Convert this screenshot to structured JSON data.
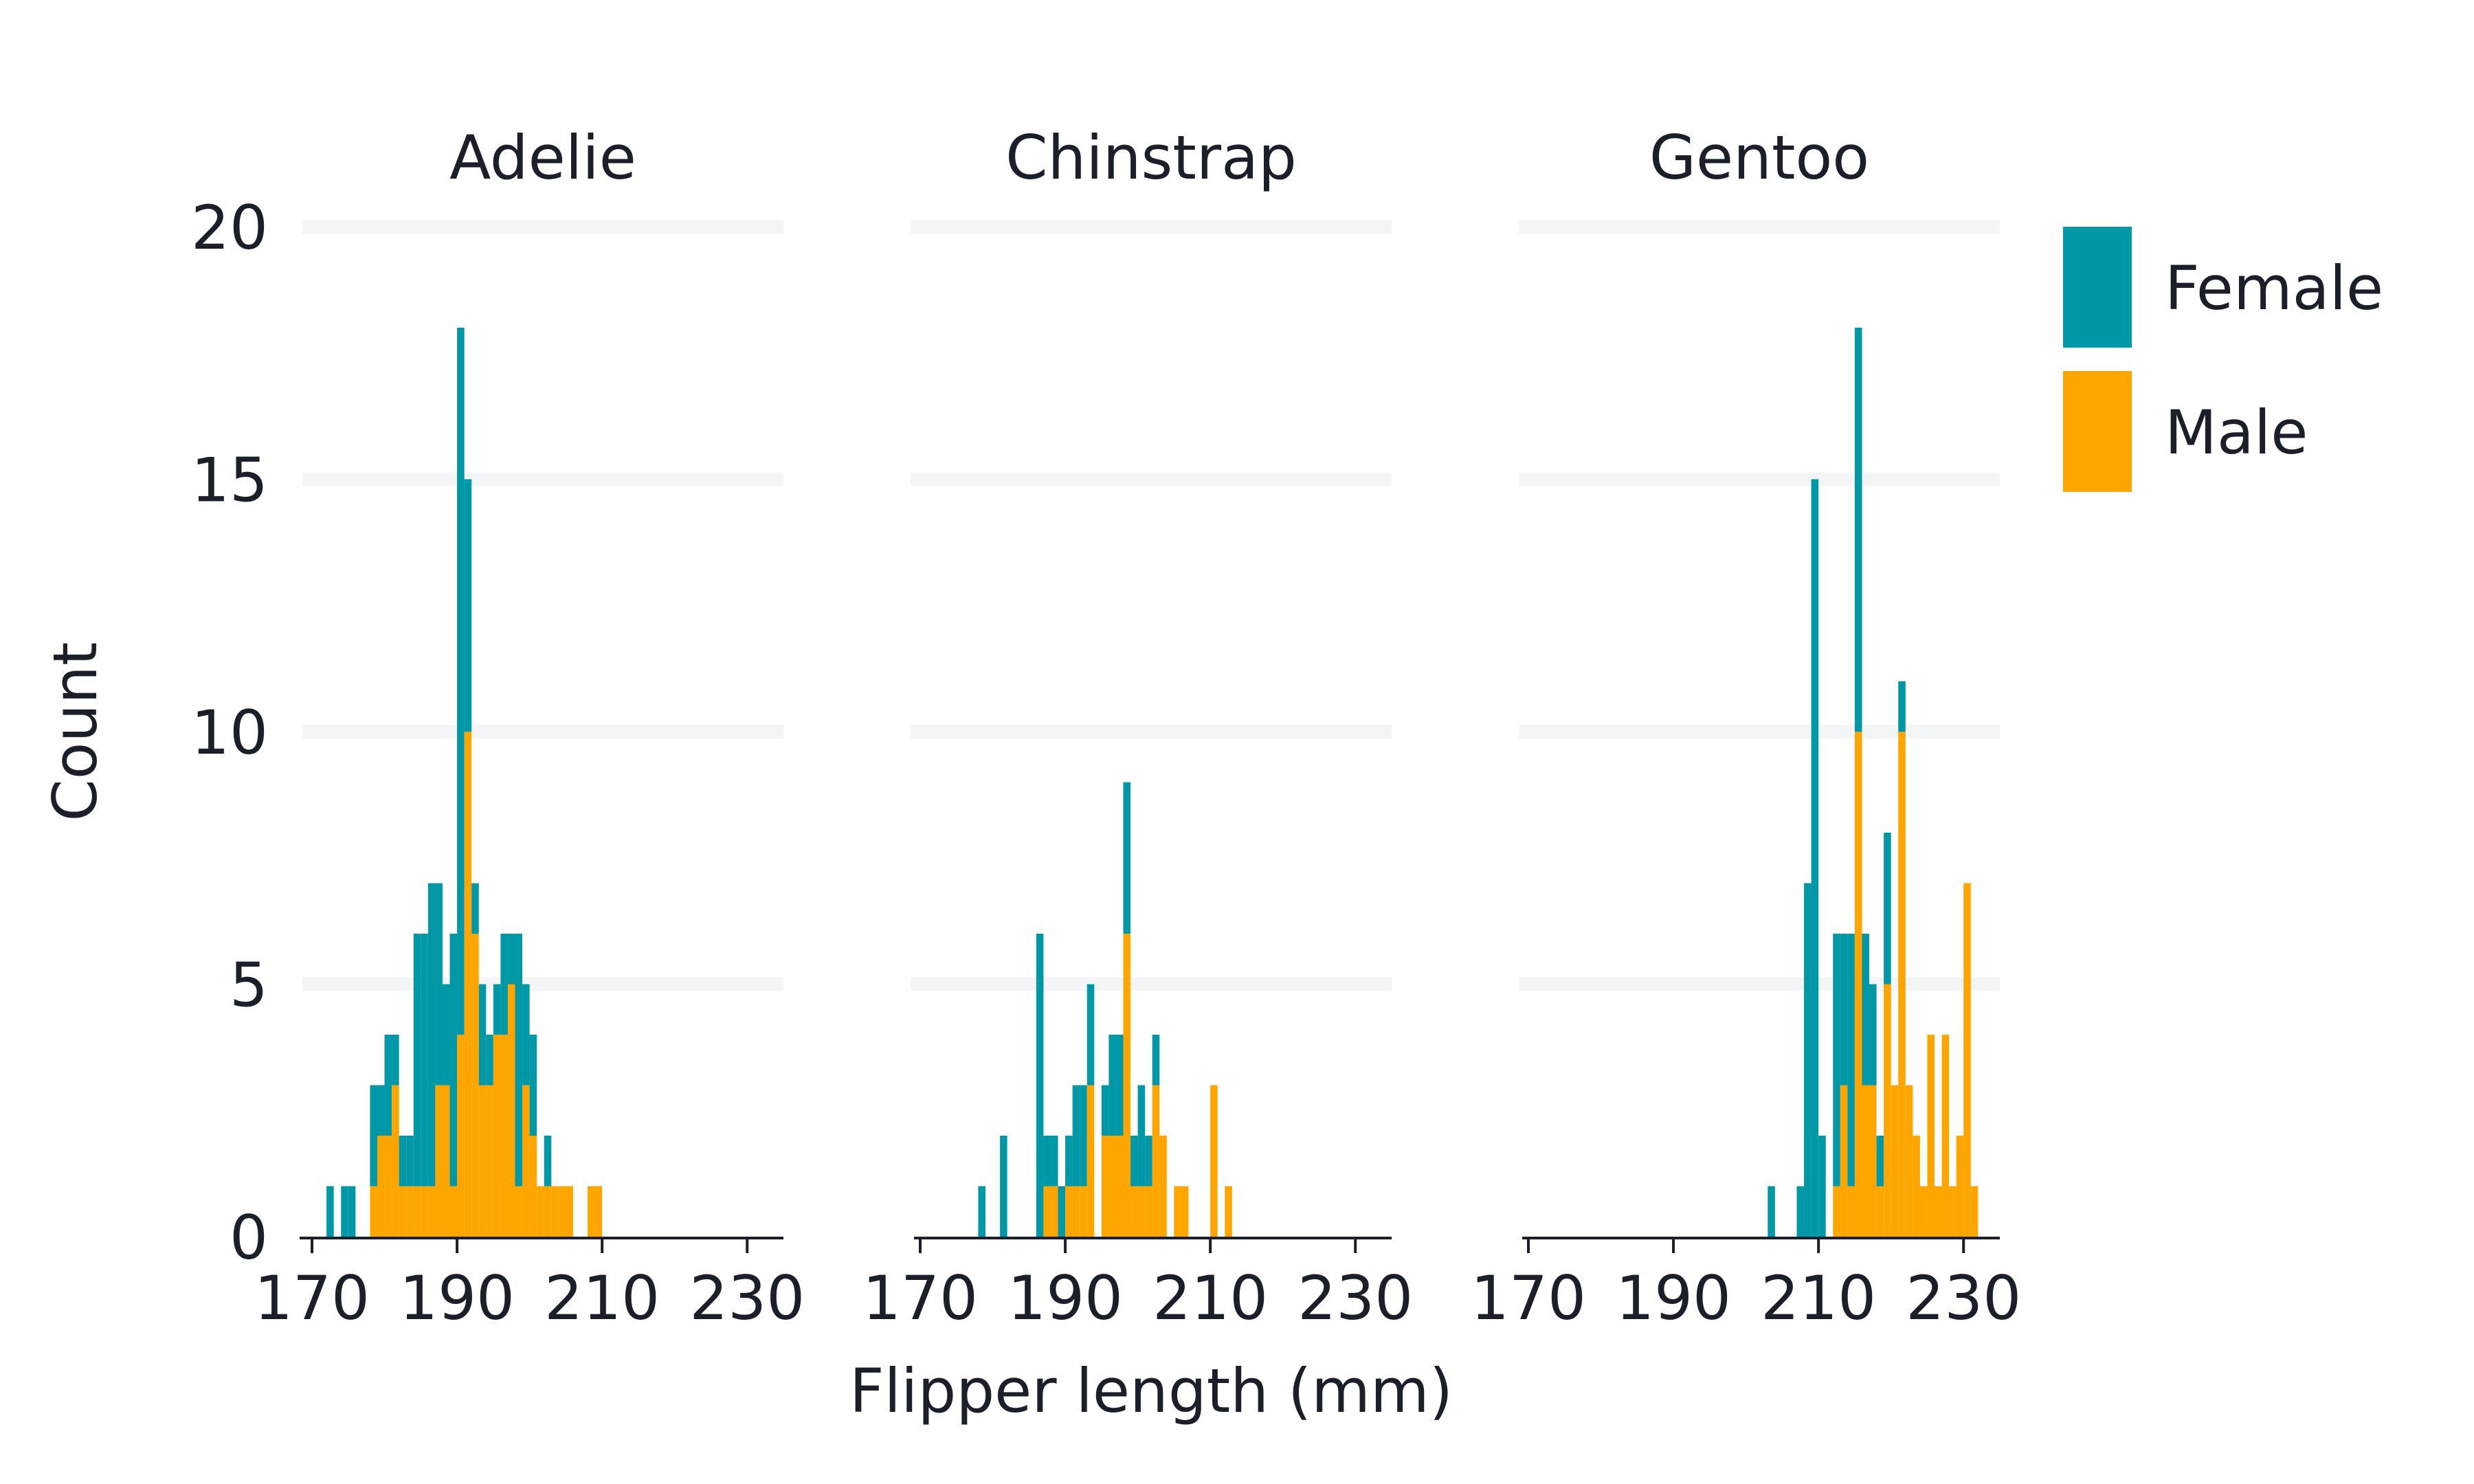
{
  "chart_data": {
    "type": "bar",
    "stacked": true,
    "xlabel": "Flipper length (mm)",
    "ylabel": "Count",
    "ylim": [
      0,
      20
    ],
    "yticks": [
      0,
      5,
      10,
      15,
      20
    ],
    "xlim": [
      170,
      235
    ],
    "xticks": [
      170,
      190,
      210,
      230
    ],
    "bin_width": 1,
    "grid": "horizontal",
    "legend": {
      "position": "right",
      "entries": [
        {
          "name": "Female",
          "color": "#0097a7"
        },
        {
          "name": "Male",
          "color": "#ffa500"
        }
      ]
    },
    "facets": [
      {
        "title": "Adelie",
        "x": [
          172,
          174,
          175,
          178,
          179,
          180,
          181,
          182,
          183,
          184,
          185,
          186,
          187,
          188,
          189,
          190,
          191,
          192,
          193,
          194,
          195,
          196,
          197,
          198,
          199,
          200,
          201,
          202,
          203,
          204,
          205,
          208,
          209
        ],
        "series": [
          {
            "name": "Female",
            "values": [
              1,
              1,
              1,
              2,
              1,
              2,
              1,
              1,
              1,
              5,
              5,
              6,
              4,
              2,
              5,
              14,
              5,
              1,
              2,
              1,
              1,
              2,
              1,
              5,
              2,
              2,
              0,
              1,
              0,
              0,
              0,
              0,
              0
            ]
          },
          {
            "name": "Male",
            "values": [
              0,
              0,
              0,
              1,
              2,
              2,
              3,
              1,
              1,
              1,
              1,
              1,
              3,
              3,
              1,
              4,
              10,
              6,
              3,
              3,
              4,
              4,
              5,
              1,
              3,
              2,
              1,
              1,
              1,
              1,
              1,
              1,
              1
            ]
          }
        ]
      },
      {
        "title": "Chinstrap",
        "x": [
          178,
          181,
          186,
          187,
          188,
          189,
          190,
          191,
          192,
          193,
          195,
          196,
          197,
          198,
          199,
          200,
          201,
          202,
          203,
          205,
          206,
          210,
          212
        ],
        "series": [
          {
            "name": "Female",
            "values": [
              1,
              2,
              6,
              1,
              1,
              1,
              1,
              2,
              2,
              2,
              1,
              2,
              2,
              3,
              1,
              2,
              1,
              1,
              0,
              0,
              0,
              0,
              0
            ]
          },
          {
            "name": "Male",
            "values": [
              0,
              0,
              0,
              1,
              1,
              0,
              1,
              1,
              1,
              3,
              2,
              2,
              2,
              6,
              1,
              1,
              1,
              3,
              2,
              1,
              1,
              3,
              1
            ]
          }
        ]
      },
      {
        "title": "Gentoo",
        "x": [
          203,
          207,
          208,
          209,
          210,
          212,
          213,
          214,
          215,
          216,
          217,
          218,
          219,
          220,
          221,
          222,
          223,
          224,
          225,
          226,
          227,
          228,
          229,
          230,
          231
        ],
        "series": [
          {
            "name": "Female",
            "values": [
              1,
              1,
              7,
              15,
              2,
              5,
              3,
              5,
              8,
              3,
              2,
              1,
              3,
              0,
              1,
              0,
              0,
              0,
              0,
              0,
              0,
              0,
              0,
              0,
              0
            ]
          },
          {
            "name": "Male",
            "values": [
              0,
              0,
              0,
              0,
              0,
              1,
              3,
              1,
              10,
              3,
              3,
              1,
              5,
              3,
              10,
              3,
              2,
              1,
              4,
              1,
              4,
              1,
              2,
              7,
              1
            ]
          }
        ]
      }
    ]
  }
}
